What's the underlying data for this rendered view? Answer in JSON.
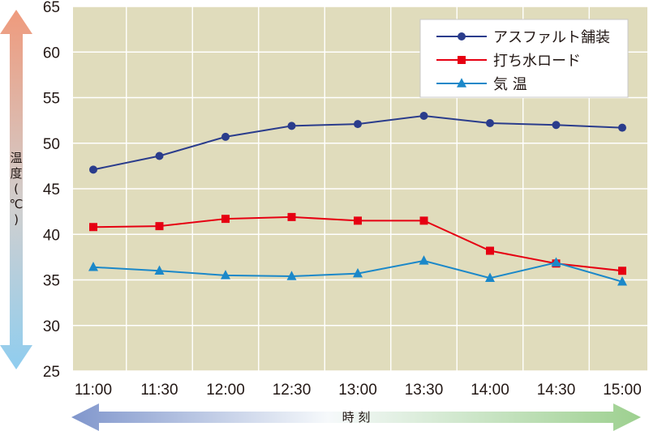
{
  "chart_data": {
    "type": "line",
    "categories": [
      "11:00",
      "11:30",
      "12:00",
      "12:30",
      "13:00",
      "13:30",
      "14:00",
      "14:30",
      "15:00"
    ],
    "ylim": [
      25,
      65
    ],
    "yticks": [
      25,
      30,
      35,
      40,
      45,
      50,
      55,
      60,
      65
    ],
    "xlabel": "時 刻",
    "ylabel": "温度(℃)",
    "grid": true,
    "legend_position": "top-right",
    "background_color": "#e0dcbc",
    "series": [
      {
        "name": "アスファルト舗装",
        "marker": "circle",
        "color": "#2a3c8c",
        "values": [
          47.1,
          48.6,
          50.7,
          51.9,
          52.1,
          53.0,
          52.2,
          52.0,
          51.7
        ]
      },
      {
        "name": "打ち水ロード",
        "marker": "square",
        "color": "#e60012",
        "values": [
          40.8,
          40.9,
          41.7,
          41.9,
          41.5,
          41.5,
          38.2,
          36.8,
          36.0
        ]
      },
      {
        "name": "気 温",
        "marker": "triangle",
        "color": "#1b88c9",
        "values": [
          36.4,
          36.0,
          35.5,
          35.4,
          35.7,
          37.1,
          35.2,
          36.9,
          34.8
        ]
      }
    ]
  }
}
